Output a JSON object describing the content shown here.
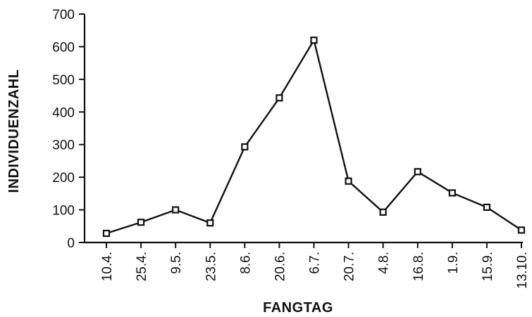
{
  "chart_data": {
    "type": "line",
    "title": "",
    "xlabel": "FANGTAG",
    "ylabel": "INDIVIDUENZAHL",
    "categories": [
      "10.4.",
      "25.4.",
      "9.5.",
      "23.5.",
      "8.6.",
      "20.6.",
      "6.7.",
      "20.7.",
      "4.8.",
      "16.8.",
      "1.9.",
      "15.9.",
      "13.10."
    ],
    "series": [
      {
        "values": [
          28,
          62,
          100,
          60,
          293,
          443,
          620,
          188,
          93,
          217,
          152,
          108,
          38
        ]
      }
    ],
    "ylim": [
      0,
      700
    ],
    "yticks": [
      0,
      100,
      200,
      300,
      400,
      500,
      600,
      700
    ],
    "grid": false,
    "legend": "none",
    "colors": {
      "line": "#111111",
      "marker_fill": "#ffffff"
    }
  }
}
